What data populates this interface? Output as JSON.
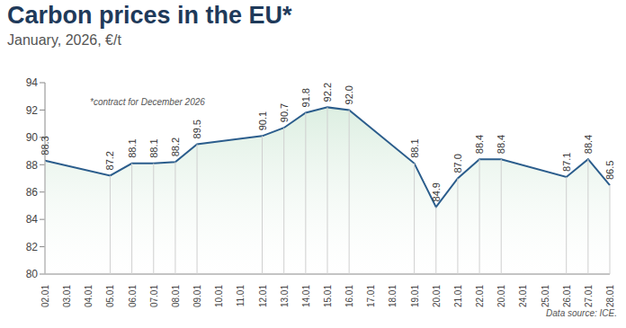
{
  "chart_data": {
    "type": "area",
    "title": "Carbon prices in the EU*",
    "subtitle": "January, 2026, €/t",
    "annotations": [
      "*contract for December 2026",
      "Data source: ICE."
    ],
    "categories": [
      "02.01",
      "03.01",
      "04.01",
      "05.01",
      "06.01",
      "07.01",
      "08.01",
      "09.01",
      "10.01",
      "11.01",
      "12.01",
      "13.01",
      "14.01",
      "15.01",
      "16.01",
      "17.01",
      "18.01",
      "19.01",
      "20.01",
      "21.01",
      "22.01",
      "20.01",
      "24.01",
      "25.01",
      "26.01",
      "27.01",
      "28.01"
    ],
    "values": [
      88.3,
      null,
      null,
      87.2,
      88.1,
      88.1,
      88.2,
      89.5,
      null,
      null,
      90.1,
      90.7,
      91.8,
      92.2,
      92.0,
      null,
      null,
      88.1,
      84.9,
      87.0,
      88.4,
      88.4,
      null,
      null,
      87.1,
      88.4,
      86.5
    ],
    "value_labels": [
      "88.3",
      null,
      null,
      "87.2",
      "88.1",
      "88.1",
      "88.2",
      "89.5",
      null,
      null,
      "90.1",
      "90.7",
      "91.8",
      "92.2",
      "92.0",
      null,
      null,
      "88.1",
      "84.9",
      "87.0",
      "88.4",
      "88.4",
      null,
      null,
      "87.1",
      "88.4",
      "86.5"
    ],
    "color": "#2b5d8c",
    "ylim": [
      80,
      94
    ],
    "yticks": [
      80,
      82,
      84,
      86,
      88,
      90,
      92,
      94
    ],
    "grid": false,
    "data_labels": true
  }
}
